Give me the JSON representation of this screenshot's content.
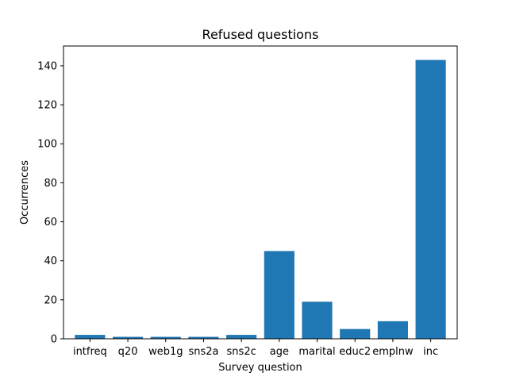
{
  "chart_data": {
    "type": "bar",
    "title": "Refused questions",
    "xlabel": "Survey question",
    "ylabel": "Occurrences",
    "categories": [
      "intfreq",
      "q20",
      "web1g",
      "sns2a",
      "sns2c",
      "age",
      "marital",
      "educ2",
      "emplnw",
      "inc"
    ],
    "values": [
      2,
      1,
      1,
      1,
      2,
      45,
      19,
      5,
      9,
      143
    ],
    "yticks": [
      0,
      20,
      40,
      60,
      80,
      100,
      120,
      140
    ],
    "ylim": [
      0,
      150.15
    ],
    "grid": false,
    "legend": "none",
    "bar_color": "#1f77b4"
  }
}
